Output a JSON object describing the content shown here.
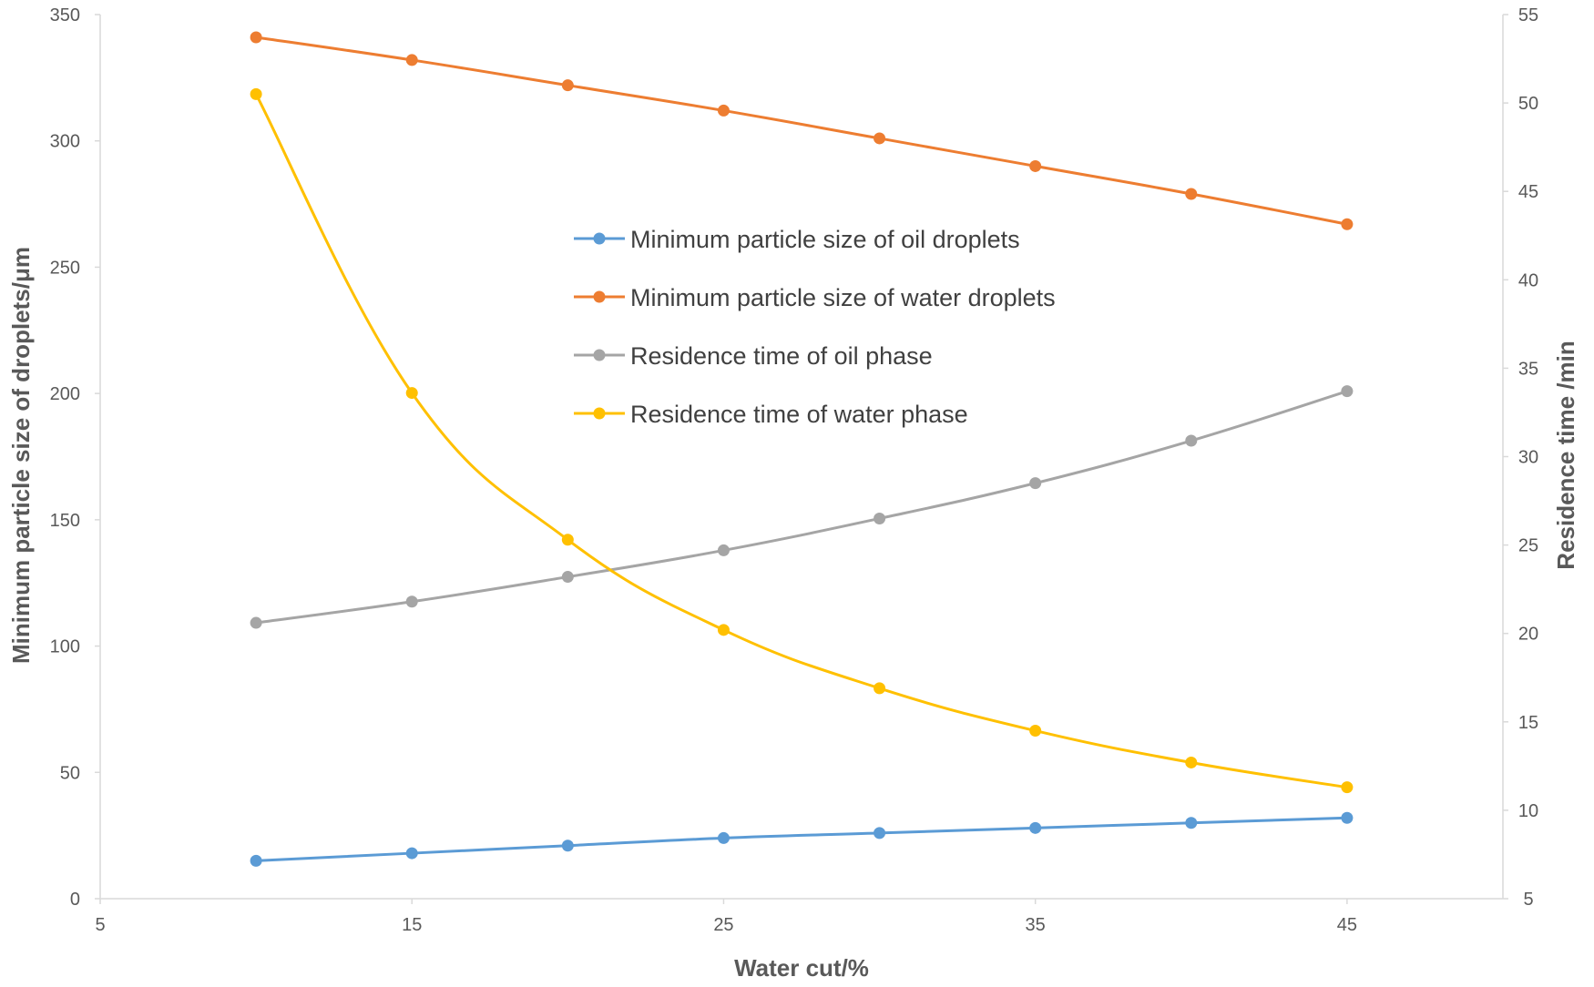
{
  "chart_data": {
    "type": "line",
    "title": "",
    "xlabel": "Water cut/%",
    "ylabel": "Minimum particle size of droplets/μm",
    "y2label": "Residence time /min",
    "xlim": [
      5,
      50
    ],
    "ylim": [
      0,
      350
    ],
    "y2lim": [
      5,
      55
    ],
    "x_ticks": [
      "5",
      "15",
      "25",
      "35",
      "45"
    ],
    "y_ticks": [
      "0",
      "50",
      "100",
      "150",
      "200",
      "250",
      "300",
      "350"
    ],
    "y2_ticks": [
      "5",
      "10",
      "15",
      "20",
      "25",
      "30",
      "35",
      "40",
      "45",
      "50",
      "55"
    ],
    "x": [
      10,
      15,
      20,
      25,
      30,
      35,
      40,
      45
    ],
    "series": [
      {
        "name": "Minimum particle size of oil droplets",
        "axis": "left",
        "color": "#5B9BD5",
        "values": [
          15,
          18,
          21,
          24,
          26,
          28,
          30,
          32
        ]
      },
      {
        "name": "Minimum particle size of water droplets",
        "axis": "left",
        "color": "#ED7D31",
        "values": [
          341,
          332,
          322,
          312,
          301,
          290,
          279,
          267
        ]
      },
      {
        "name": "Residence time of oil phase",
        "axis": "right",
        "color": "#A5A5A5",
        "values": [
          20.6,
          21.8,
          23.2,
          24.7,
          26.5,
          28.5,
          30.9,
          33.7
        ]
      },
      {
        "name": "Residence time of water phase",
        "axis": "right",
        "color": "#FFC000",
        "values": [
          50.5,
          33.6,
          25.3,
          20.2,
          16.9,
          14.5,
          12.7,
          11.3
        ]
      }
    ],
    "legend_position": "center-top"
  }
}
